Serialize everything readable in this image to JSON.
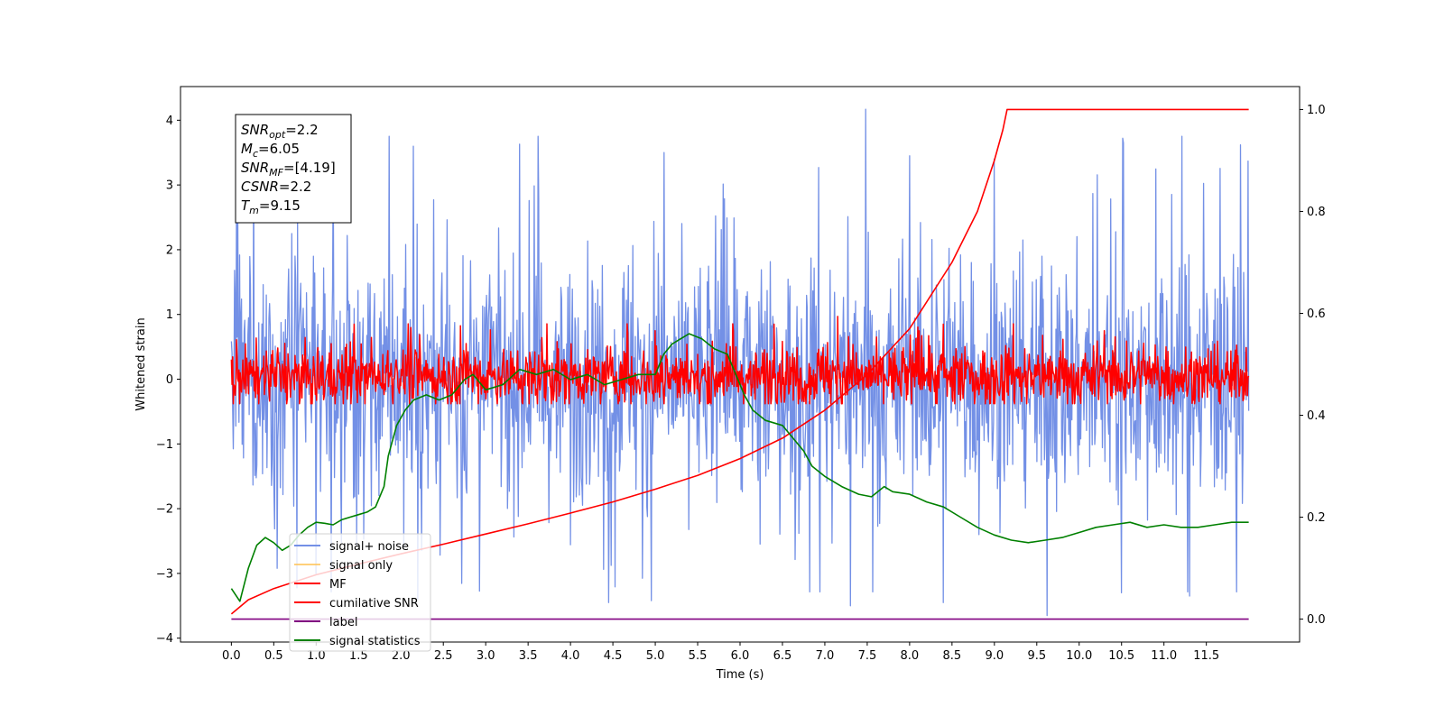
{
  "chart_data": {
    "type": "line",
    "title": "",
    "xlabel": "Time (s)",
    "ylabel": "Whitened strain",
    "y2label": "",
    "xlim": [
      -0.6,
      12.6
    ],
    "ylim": [
      -4.06,
      4.52
    ],
    "y2lim": [
      -0.045,
      1.045
    ],
    "xticks": [
      0.0,
      0.5,
      1.0,
      1.5,
      2.0,
      2.5,
      3.0,
      3.5,
      4.0,
      4.5,
      5.0,
      5.5,
      6.0,
      6.5,
      7.0,
      7.5,
      8.0,
      8.5,
      9.0,
      9.5,
      10.0,
      10.5,
      11.0,
      11.5
    ],
    "xtick_labels": [
      "0.0",
      "0.5",
      "1.0",
      "1.5",
      "2.0",
      "2.5",
      "3.0",
      "3.5",
      "4.0",
      "4.5",
      "5.0",
      "5.5",
      "6.0",
      "6.5",
      "7.0",
      "7.5",
      "8.0",
      "8.5",
      "9.0",
      "9.5",
      "10.0",
      "10.5",
      "11.0",
      "11.5"
    ],
    "yticks": [
      -4,
      -3,
      -2,
      -1,
      0,
      1,
      2,
      3,
      4
    ],
    "ytick_labels": [
      "−4",
      "−3",
      "−2",
      "−1",
      "0",
      "1",
      "2",
      "3",
      "4"
    ],
    "y2ticks": [
      0.0,
      0.2,
      0.4,
      0.6,
      0.8,
      1.0
    ],
    "y2tick_labels": [
      "0.0",
      "0.2",
      "0.4",
      "0.6",
      "0.8",
      "1.0"
    ],
    "grid": false,
    "legend_position": "lower-left",
    "info_box": [
      {
        "sym": "SNR",
        "sub": "opt",
        "val": "=2.2"
      },
      {
        "sym": "M",
        "sub": "c",
        "val": "=6.05"
      },
      {
        "sym": "SNR",
        "sub": "MF",
        "val": "=[4.19]"
      },
      {
        "sym": "CSNR",
        "sub": "",
        "val": "=2.2"
      },
      {
        "sym": "T",
        "sub": "m",
        "val": "=9.15"
      }
    ],
    "series": [
      {
        "name": "signal+ noise",
        "color": "#7390e6",
        "axis": "left",
        "style": "dense-noise",
        "x_range": [
          0.0,
          12.0
        ],
        "core_range": [
          -1.6,
          1.6
        ],
        "spike_range": [
          -3.65,
          4.17
        ],
        "peaks": [
          [
            1.2,
            3.35
          ],
          [
            2.15,
            3.6
          ],
          [
            3.4,
            3.63
          ],
          [
            5.1,
            3.5
          ],
          [
            7.48,
            4.17
          ],
          [
            8.0,
            3.45
          ],
          [
            9.0,
            3.4
          ],
          [
            2.2,
            -3.4
          ],
          [
            4.45,
            -3.45
          ],
          [
            4.95,
            -3.42
          ],
          [
            7.3,
            -3.5
          ],
          [
            8.4,
            -3.45
          ],
          [
            9.62,
            -3.65
          ],
          [
            10.5,
            -3.3
          ],
          [
            11.3,
            -3.35
          ]
        ]
      },
      {
        "name": "signal only",
        "color": "#ffc04d",
        "axis": "left",
        "style": "hidden",
        "x": [
          0.0,
          12.0
        ],
        "y": [
          0.0,
          0.0
        ]
      },
      {
        "name": "MF",
        "color": "#ff0000",
        "axis": "left",
        "style": "dense-noise",
        "x_range": [
          0.0,
          12.0
        ],
        "core_range": [
          -0.35,
          0.45
        ],
        "spike_range": [
          -0.42,
          0.95
        ],
        "peaks": [
          [
            1.45,
            0.85
          ],
          [
            5.0,
            0.75
          ],
          [
            6.4,
            0.85
          ],
          [
            7.15,
            0.97
          ],
          [
            8.4,
            0.85
          ],
          [
            10.3,
            0.75
          ]
        ]
      },
      {
        "name": "cumilative SNR",
        "color": "#ff0000",
        "axis": "right",
        "style": "line",
        "x": [
          0.0,
          0.2,
          0.5,
          1.0,
          1.5,
          2.0,
          2.5,
          3.0,
          3.5,
          4.0,
          4.5,
          5.0,
          5.5,
          6.0,
          6.5,
          7.0,
          7.5,
          8.0,
          8.5,
          8.8,
          9.0,
          9.1,
          9.15,
          11.5,
          12.0
        ],
        "y": [
          0.01,
          0.038,
          0.06,
          0.087,
          0.108,
          0.128,
          0.147,
          0.167,
          0.187,
          0.208,
          0.23,
          0.255,
          0.282,
          0.315,
          0.355,
          0.41,
          0.48,
          0.57,
          0.7,
          0.8,
          0.9,
          0.96,
          1.0,
          1.0,
          1.0
        ]
      },
      {
        "name": "label",
        "color": "#800080",
        "axis": "right",
        "style": "line",
        "x": [
          0.0,
          12.0
        ],
        "y": [
          0.0,
          0.0
        ]
      },
      {
        "name": "signal statistics",
        "color": "#008000",
        "axis": "right",
        "style": "line",
        "x": [
          0.0,
          0.1,
          0.2,
          0.3,
          0.4,
          0.5,
          0.6,
          0.7,
          0.8,
          0.9,
          1.0,
          1.1,
          1.2,
          1.3,
          1.4,
          1.5,
          1.6,
          1.7,
          1.8,
          1.85,
          1.95,
          2.05,
          2.15,
          2.3,
          2.45,
          2.6,
          2.75,
          2.85,
          3.0,
          3.2,
          3.4,
          3.6,
          3.8,
          4.0,
          4.2,
          4.4,
          4.6,
          4.8,
          5.0,
          5.1,
          5.2,
          5.3,
          5.4,
          5.55,
          5.7,
          5.85,
          5.95,
          6.05,
          6.15,
          6.3,
          6.5,
          6.6,
          6.75,
          6.85,
          7.0,
          7.2,
          7.4,
          7.55,
          7.7,
          7.8,
          8.0,
          8.2,
          8.4,
          8.6,
          8.8,
          9.0,
          9.2,
          9.4,
          9.6,
          9.8,
          10.0,
          10.2,
          10.4,
          10.6,
          10.8,
          11.0,
          11.2,
          11.4,
          11.6,
          11.8,
          11.9,
          12.0
        ],
        "y": [
          0.06,
          0.035,
          0.1,
          0.145,
          0.16,
          0.15,
          0.135,
          0.145,
          0.165,
          0.18,
          0.19,
          0.188,
          0.185,
          0.195,
          0.2,
          0.205,
          0.21,
          0.22,
          0.26,
          0.32,
          0.38,
          0.41,
          0.43,
          0.44,
          0.43,
          0.44,
          0.47,
          0.48,
          0.45,
          0.46,
          0.49,
          0.48,
          0.49,
          0.47,
          0.48,
          0.46,
          0.47,
          0.48,
          0.48,
          0.52,
          0.54,
          0.55,
          0.56,
          0.55,
          0.53,
          0.52,
          0.48,
          0.44,
          0.41,
          0.39,
          0.38,
          0.36,
          0.33,
          0.3,
          0.28,
          0.26,
          0.245,
          0.24,
          0.26,
          0.25,
          0.245,
          0.23,
          0.22,
          0.2,
          0.18,
          0.165,
          0.155,
          0.15,
          0.155,
          0.16,
          0.17,
          0.18,
          0.185,
          0.19,
          0.18,
          0.185,
          0.18,
          0.18,
          0.185,
          0.19,
          0.19,
          0.19
        ]
      }
    ]
  }
}
